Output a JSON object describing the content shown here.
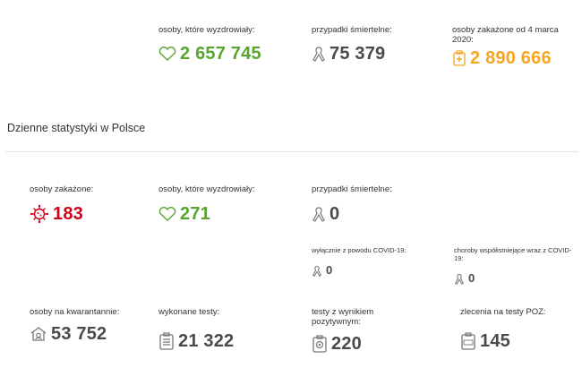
{
  "totals": {
    "recovered": {
      "label": "osoby, które wyzdrowiały:",
      "value": "2 657 745",
      "icon": "heart-icon"
    },
    "deaths": {
      "label": "przypadki śmiertelne:",
      "value": "75 379",
      "icon": "ribbon-icon"
    },
    "infected": {
      "label": "osoby zakażone od 4 marca 2020:",
      "value": "2 890 666",
      "icon": "medical-clipboard-icon"
    }
  },
  "daily": {
    "title": "Dzienne statystyki w Polsce",
    "infected": {
      "label": "osoby zakażone:",
      "value": "183",
      "icon": "virus-icon"
    },
    "recovered": {
      "label": "osoby, które wyzdrowiały:",
      "value": "271",
      "icon": "heart-icon"
    },
    "deaths": {
      "label": "przypadki śmiertelne:",
      "value": "0",
      "icon": "ribbon-icon"
    },
    "deaths_covid_only": {
      "label": "wyłącznie z powodu COVID-19:",
      "value": "0",
      "icon": "ribbon-icon"
    },
    "deaths_comorbid": {
      "label": "choroby współistniejące wraz z COVID-19:",
      "value": "0",
      "icon": "ribbon-icon"
    },
    "quarantine": {
      "label": "osoby na kwarantannie:",
      "value": "53 752",
      "icon": "house-icon"
    },
    "tests": {
      "label": "wykonane testy:",
      "value": "21 322",
      "icon": "clipboard-icon"
    },
    "positive_tests": {
      "label": "testy z wynikiem pozytywnym:",
      "value": "220",
      "icon": "test-clipboard-icon"
    },
    "poz_orders": {
      "label": "zlecenia na testy POZ:",
      "value": "145",
      "icon": "poz-clipboard-icon"
    }
  },
  "colors": {
    "green": "#58a42f",
    "dark": "#4a4a4a",
    "orange": "#f5a623",
    "red": "#d0021b"
  }
}
